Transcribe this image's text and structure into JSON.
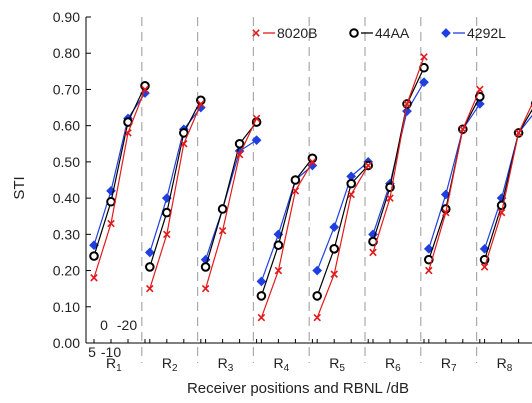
{
  "chart_data": {
    "type": "line",
    "ylabel": "STI",
    "xlabel": "Receiver positions and RBNL /dB",
    "ylim": [
      0,
      0.9
    ],
    "yticks": [
      "0.00",
      "0.10",
      "0.20",
      "0.30",
      "0.40",
      "0.50",
      "0.60",
      "0.70",
      "0.80",
      "0.90"
    ],
    "groups": [
      {
        "main": "R",
        "sub": "1"
      },
      {
        "main": "R",
        "sub": "2"
      },
      {
        "main": "R",
        "sub": "3"
      },
      {
        "main": "R",
        "sub": "4"
      },
      {
        "main": "R",
        "sub": "5"
      },
      {
        "main": "R",
        "sub": "6"
      },
      {
        "main": "R",
        "sub": "7"
      },
      {
        "main": "R",
        "sub": "8"
      }
    ],
    "rbnl_levels": [
      "5",
      "-10",
      "0",
      "-20"
    ],
    "legend_position": "top-right",
    "series": [
      {
        "name": "8020B",
        "marker": "x",
        "color": "#e31a1c",
        "values": [
          [
            0.18,
            0.33,
            0.58,
            0.7
          ],
          [
            0.15,
            0.3,
            0.55,
            0.66
          ],
          [
            0.15,
            0.31,
            0.52,
            0.62
          ],
          [
            0.07,
            0.2,
            0.42,
            0.5
          ],
          [
            0.07,
            0.19,
            0.41,
            0.49
          ],
          [
            0.25,
            0.4,
            0.66,
            0.79
          ],
          [
            0.2,
            0.36,
            0.59,
            0.7
          ],
          [
            0.21,
            0.36,
            0.58,
            0.68
          ]
        ]
      },
      {
        "name": "44AA",
        "marker": "circle",
        "color": "#000000",
        "values": [
          [
            0.24,
            0.39,
            0.61,
            0.71
          ],
          [
            0.21,
            0.36,
            0.58,
            0.67
          ],
          [
            0.21,
            0.37,
            0.55,
            0.61
          ],
          [
            0.13,
            0.27,
            0.45,
            0.51
          ],
          [
            0.13,
            0.26,
            0.44,
            0.49
          ],
          [
            0.28,
            0.43,
            0.66,
            0.76
          ],
          [
            0.23,
            0.37,
            0.59,
            0.68
          ],
          [
            0.23,
            0.38,
            0.58,
            0.66
          ]
        ]
      },
      {
        "name": "4292L",
        "marker": "diamond",
        "color": "#1f3fe0",
        "values": [
          [
            0.27,
            0.42,
            0.62,
            0.69
          ],
          [
            0.25,
            0.4,
            0.59,
            0.65
          ],
          [
            0.23,
            0.37,
            0.53,
            0.56
          ],
          [
            0.17,
            0.3,
            0.45,
            0.49
          ],
          [
            0.2,
            0.32,
            0.46,
            0.5
          ],
          [
            0.3,
            0.44,
            0.64,
            0.72
          ],
          [
            0.26,
            0.41,
            0.59,
            0.66
          ],
          [
            0.26,
            0.4,
            0.58,
            0.64
          ]
        ]
      }
    ]
  }
}
